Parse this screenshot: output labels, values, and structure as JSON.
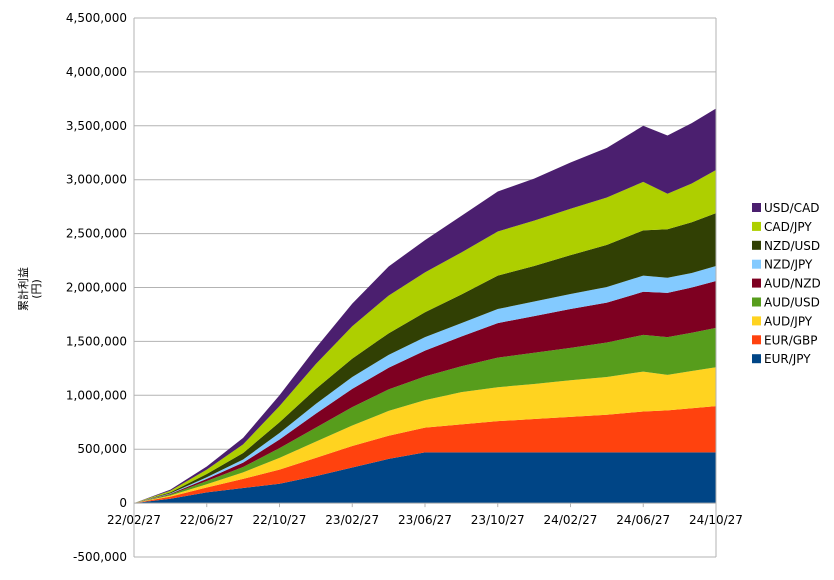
{
  "chart_data": {
    "type": "area",
    "stacked": true,
    "title": "",
    "xlabel": "",
    "ylabel": "累計利益",
    "ylabel_unit": "(円)",
    "ylim": [
      -500000,
      4500000
    ],
    "yticks": [
      -500000,
      0,
      500000,
      1000000,
      1500000,
      2000000,
      2500000,
      3000000,
      3500000,
      4000000,
      4500000
    ],
    "ytick_labels": [
      "-500,000",
      "0",
      "500,000",
      "1,000,000",
      "1,500,000",
      "2,000,000",
      "2,500,000",
      "3,000,000",
      "3,500,000",
      "4,000,000",
      "4,500,000"
    ],
    "x_labels": [
      "22/02/27",
      "22/06/27",
      "22/10/27",
      "23/02/27",
      "23/06/27",
      "23/10/27",
      "24/02/27",
      "24/06/27",
      "24/10/27"
    ],
    "grid": true,
    "legend_position": "right",
    "x": [
      "22/02/27",
      "22/04/27",
      "22/06/27",
      "22/08/27",
      "22/10/27",
      "22/12/27",
      "23/02/27",
      "23/04/27",
      "23/06/27",
      "23/08/27",
      "23/10/27",
      "23/12/27",
      "24/02/27",
      "24/04/27",
      "24/06/27",
      "24/07/17",
      "24/08/27",
      "24/10/27",
      "24/11/20"
    ],
    "series": [
      {
        "name": "EUR/JPY",
        "color": "#004586",
        "values": [
          0,
          40000,
          100000,
          140000,
          180000,
          250000,
          330000,
          410000,
          470000,
          470000,
          470000,
          470000,
          470000,
          470000,
          470000,
          470000,
          470000,
          470000,
          470000
        ]
      },
      {
        "name": "EUR/GBP",
        "color": "#ff420e",
        "values": [
          0,
          20000,
          45000,
          85000,
          130000,
          170000,
          200000,
          215000,
          230000,
          260000,
          290000,
          310000,
          330000,
          350000,
          380000,
          390000,
          410000,
          430000,
          470000
        ]
      },
      {
        "name": "AUD/JPY",
        "color": "#ffd320",
        "values": [
          0,
          10000,
          30000,
          60000,
          110000,
          150000,
          190000,
          230000,
          255000,
          300000,
          315000,
          325000,
          340000,
          350000,
          370000,
          330000,
          345000,
          360000,
          400000
        ]
      },
      {
        "name": "AUD/USD",
        "color": "#579d1c",
        "values": [
          0,
          10000,
          30000,
          50000,
          90000,
          130000,
          170000,
          200000,
          220000,
          240000,
          275000,
          290000,
          300000,
          320000,
          340000,
          350000,
          355000,
          365000,
          370000
        ]
      },
      {
        "name": "AUD/NZD",
        "color": "#7e0021",
        "values": [
          0,
          5000,
          20000,
          40000,
          80000,
          130000,
          170000,
          200000,
          240000,
          275000,
          320000,
          340000,
          360000,
          370000,
          400000,
          410000,
          420000,
          435000,
          450000
        ]
      },
      {
        "name": "NZD/JPY",
        "color": "#83caff",
        "values": [
          0,
          5000,
          15000,
          30000,
          60000,
          90000,
          110000,
          120000,
          125000,
          125000,
          130000,
          135000,
          140000,
          145000,
          150000,
          140000,
          135000,
          140000,
          145000
        ]
      },
      {
        "name": "NZD/USD",
        "color": "#314004",
        "values": [
          0,
          10000,
          30000,
          60000,
          100000,
          140000,
          170000,
          200000,
          230000,
          265000,
          310000,
          330000,
          360000,
          390000,
          420000,
          450000,
          470000,
          490000,
          520000
        ]
      },
      {
        "name": "CAD/JPY",
        "color": "#aecf00",
        "values": [
          0,
          15000,
          40000,
          80000,
          150000,
          230000,
          300000,
          350000,
          370000,
          390000,
          410000,
          420000,
          430000,
          440000,
          450000,
          330000,
          360000,
          400000,
          440000
        ]
      },
      {
        "name": "USD/CAD",
        "color": "#4b1f6f",
        "values": [
          0,
          10000,
          30000,
          60000,
          100000,
          150000,
          210000,
          270000,
          300000,
          340000,
          370000,
          390000,
          430000,
          460000,
          520000,
          540000,
          560000,
          570000,
          600000
        ]
      }
    ]
  }
}
